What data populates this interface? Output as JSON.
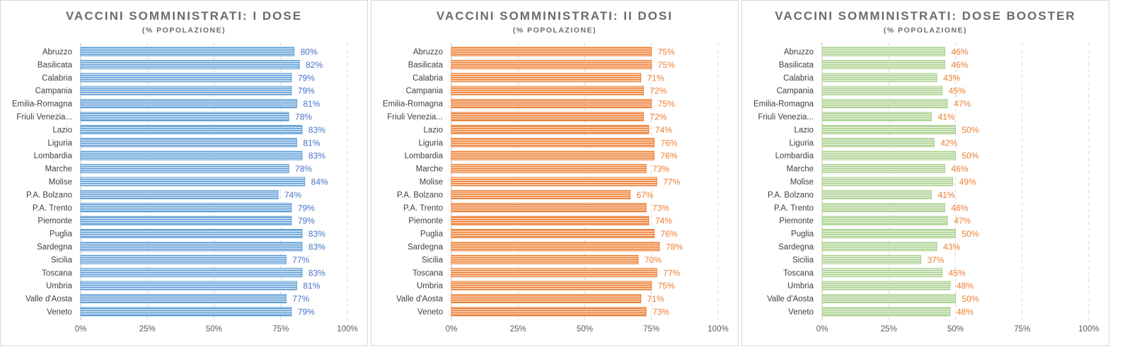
{
  "colors": {
    "blue": "#5b9bd5",
    "blue_light": "#dbe9f7",
    "blue_text": "#4472c4",
    "orange": "#ed7d31",
    "orange_light": "#fbd9c3",
    "orange_text": "#ed7d31",
    "green": "#a9d18e",
    "green_light": "#e6f1de",
    "green_text": "#ed7d31",
    "gridline": "#d9d9d9"
  },
  "chart_data": [
    {
      "type": "bar",
      "orientation": "horizontal",
      "title": "VACCINI SOMMINISTRATI: I DOSE",
      "subtitle": "(% POPOLAZIONE)",
      "categories": [
        "Abruzzo",
        "Basilicata",
        "Calabria",
        "Campania",
        "Emilia-Romagna",
        "Friuli Venezia...",
        "Lazio",
        "Liguria",
        "Lombardia",
        "Marche",
        "Molise",
        "P.A. Bolzano",
        "P.A. Trento",
        "Piemonte",
        "Puglia",
        "Sardegna",
        "Sicilia",
        "Toscana",
        "Umbria",
        "Valle d'Aosta",
        "Veneto"
      ],
      "values": [
        80,
        82,
        79,
        79,
        81,
        78,
        83,
        81,
        83,
        78,
        84,
        74,
        79,
        79,
        83,
        83,
        77,
        83,
        81,
        77,
        79
      ],
      "data_labels": [
        "80%",
        "82%",
        "79%",
        "79%",
        "81%",
        "78%",
        "83%",
        "81%",
        "83%",
        "78%",
        "84%",
        "74%",
        "79%",
        "79%",
        "83%",
        "83%",
        "77%",
        "83%",
        "81%",
        "77%",
        "79%"
      ],
      "xlim": [
        0,
        100
      ],
      "xticks": [
        "0%",
        "25%",
        "50%",
        "75%",
        "100%"
      ],
      "grid": true,
      "color_key": "blue"
    },
    {
      "type": "bar",
      "orientation": "horizontal",
      "title": "VACCINI SOMMINISTRATI: II DOSI",
      "subtitle": "(% POPOLAZIONE)",
      "categories": [
        "Abruzzo",
        "Basilicata",
        "Calabria",
        "Campania",
        "Emilia-Romagna",
        "Friuli Venezia...",
        "Lazio",
        "Liguria",
        "Lombardia",
        "Marche",
        "Molise",
        "P.A. Bolzano",
        "P.A. Trento",
        "Piemonte",
        "Puglia",
        "Sardegna",
        "Sicilia",
        "Toscana",
        "Umbria",
        "Valle d'Aosta",
        "Veneto"
      ],
      "values": [
        75,
        75,
        71,
        72,
        75,
        72,
        74,
        76,
        76,
        73,
        77,
        67,
        73,
        74,
        76,
        78,
        70,
        77,
        75,
        71,
        73
      ],
      "data_labels": [
        "75%",
        "75%",
        "71%",
        "72%",
        "75%",
        "72%",
        "74%",
        "76%",
        "76%",
        "73%",
        "77%",
        "67%",
        "73%",
        "74%",
        "76%",
        "78%",
        "70%",
        "77%",
        "75%",
        "71%",
        "73%"
      ],
      "xlim": [
        0,
        100
      ],
      "xticks": [
        "0%",
        "25%",
        "50%",
        "75%",
        "100%"
      ],
      "grid": true,
      "color_key": "orange"
    },
    {
      "type": "bar",
      "orientation": "horizontal",
      "title": "VACCINI SOMMINISTRATI: DOSE BOOSTER",
      "subtitle": "(% POPOLAZIONE)",
      "categories": [
        "Abruzzo",
        "Basilicata",
        "Calabria",
        "Campania",
        "Emilia-Romagna",
        "Friuli Venezia...",
        "Lazio",
        "Liguria",
        "Lombardia",
        "Marche",
        "Molise",
        "P.A. Bolzano",
        "P.A. Trento",
        "Piemonte",
        "Puglia",
        "Sardegna",
        "Sicilia",
        "Toscana",
        "Umbria",
        "Valle d'Aosta",
        "Veneto"
      ],
      "values": [
        46,
        46,
        43,
        45,
        47,
        41,
        50,
        42,
        50,
        46,
        49,
        41,
        46,
        47,
        50,
        43,
        37,
        45,
        48,
        50,
        48
      ],
      "data_labels": [
        "46%",
        "46%",
        "43%",
        "45%",
        "47%",
        "41%",
        "50%",
        "42%",
        "50%",
        "46%",
        "49%",
        "41%",
        "46%",
        "47%",
        "50%",
        "43%",
        "37%",
        "45%",
        "48%",
        "50%",
        "48%"
      ],
      "xlim": [
        0,
        100
      ],
      "xticks": [
        "0%",
        "25%",
        "50%",
        "75%",
        "100%"
      ],
      "grid": true,
      "color_key": "green"
    }
  ]
}
